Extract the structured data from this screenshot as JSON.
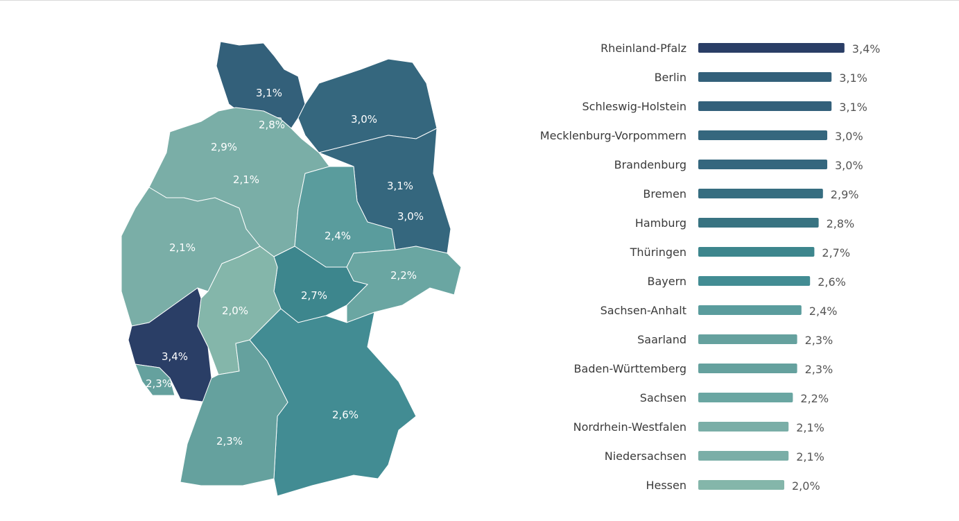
{
  "chart_data": [
    {
      "type": "choropleth-map",
      "regions": [
        {
          "name": "Schleswig-Holstein",
          "value": 3.1,
          "label": "3,1%"
        },
        {
          "name": "Hamburg",
          "value": 2.8,
          "label": "2,8%"
        },
        {
          "name": "Mecklenburg-Vorpommern",
          "value": 3.0,
          "label": "3,0%"
        },
        {
          "name": "Bremen",
          "value": 2.9,
          "label": "2,9%"
        },
        {
          "name": "Niedersachsen",
          "value": 2.1,
          "label": "2,1%"
        },
        {
          "name": "Berlin",
          "value": 3.1,
          "label": "3,1%"
        },
        {
          "name": "Brandenburg",
          "value": 3.0,
          "label": "3,0%"
        },
        {
          "name": "Nordrhein-Westfalen",
          "value": 2.1,
          "label": "2,1%"
        },
        {
          "name": "Sachsen-Anhalt",
          "value": 2.4,
          "label": "2,4%"
        },
        {
          "name": "Sachsen",
          "value": 2.2,
          "label": "2,2%"
        },
        {
          "name": "Thüringen",
          "value": 2.7,
          "label": "2,7%"
        },
        {
          "name": "Hessen",
          "value": 2.0,
          "label": "2,0%"
        },
        {
          "name": "Rheinland-Pfalz",
          "value": 3.4,
          "label": "3,4%"
        },
        {
          "name": "Saarland",
          "value": 2.3,
          "label": "2,3%"
        },
        {
          "name": "Bayern",
          "value": 2.6,
          "label": "2,6%"
        },
        {
          "name": "Baden-Württemberg",
          "value": 2.3,
          "label": "2,3%"
        }
      ]
    },
    {
      "type": "bar",
      "orientation": "horizontal",
      "categories": [
        "Rheinland-Pfalz",
        "Berlin",
        "Schleswig-Holstein",
        "Mecklenburg-Vorpommern",
        "Brandenburg",
        "Bremen",
        "Hamburg",
        "Thüringen",
        "Bayern",
        "Sachsen-Anhalt",
        "Saarland",
        "Baden-Württemberg",
        "Sachsen",
        "Nordrhein-Westfalen",
        "Niedersachsen",
        "Hessen"
      ],
      "values": [
        3.4,
        3.1,
        3.1,
        3.0,
        3.0,
        2.9,
        2.8,
        2.7,
        2.6,
        2.4,
        2.3,
        2.3,
        2.2,
        2.1,
        2.1,
        2.0
      ],
      "value_labels": [
        "3,4%",
        "3,1%",
        "3,1%",
        "3,0%",
        "3,0%",
        "2,9%",
        "2,8%",
        "2,7%",
        "2,6%",
        "2,4%",
        "2,3%",
        "2,3%",
        "2,2%",
        "2,1%",
        "2,1%",
        "2,0%"
      ]
    }
  ],
  "colors": {
    "3.4": "#2a3e66",
    "3.1": "#33607a",
    "3.0": "#35677e",
    "2.9": "#366d80",
    "2.8": "#387381",
    "2.7": "#3d868d",
    "2.6": "#428c93",
    "2.4": "#5a9c9d",
    "2.3": "#65a19e",
    "2.2": "#6aa6a2",
    "2.1": "#7aaea7",
    "2.0": "#84b6aa"
  }
}
